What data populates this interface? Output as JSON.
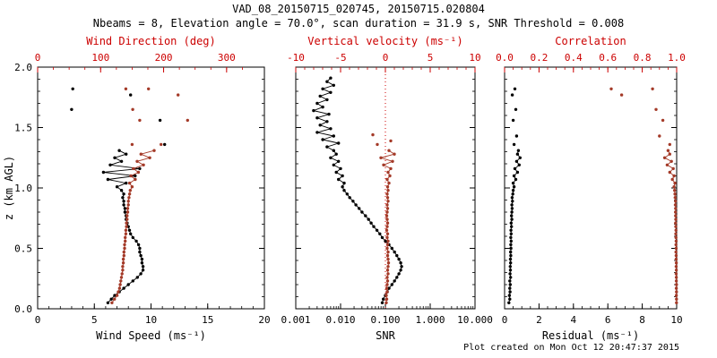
{
  "header": {
    "title": "VAD_08_20150715_020745, 20150715.020804",
    "subtitle": "Nbeams = 8, Elevation angle = 70.0°, scan duration = 31.9 s, SNR Threshold = 0.008"
  },
  "footer": {
    "created": "Plot created on Mon Oct 12 20:47:37 2015"
  },
  "chart_data": {
    "type": "scatter",
    "title": "VAD_08_20150715_020745, 20150715.020804",
    "colors": {
      "axis_red": "#cc0000",
      "marker_red": "#a43a28",
      "black": "#000000"
    },
    "y_axis": {
      "label": "z (km AGL)",
      "range": [
        0,
        2
      ],
      "tick_values": [
        0,
        0.5,
        1,
        1.5,
        2
      ],
      "tick_labels": [
        "0.0",
        "0.5",
        "1.0",
        "1.5",
        "2.0"
      ]
    },
    "z_levels": {
      "main": [
        0.05,
        0.08,
        0.11,
        0.14,
        0.17,
        0.2,
        0.23,
        0.26,
        0.29,
        0.32,
        0.35,
        0.38,
        0.41,
        0.44,
        0.47,
        0.5,
        0.53,
        0.56,
        0.59,
        0.62,
        0.65,
        0.68,
        0.71,
        0.74,
        0.77,
        0.8,
        0.83,
        0.86,
        0.89,
        0.92,
        0.95,
        0.98,
        1.01,
        1.04,
        1.07,
        1.1,
        1.13,
        1.16,
        1.19,
        1.22,
        1.25,
        1.28,
        1.31
      ],
      "snr": [
        0.05,
        0.08,
        0.11,
        0.14,
        0.17,
        0.2,
        0.23,
        0.26,
        0.29,
        0.32,
        0.35,
        0.38,
        0.41,
        0.44,
        0.47,
        0.5,
        0.53,
        0.56,
        0.59,
        0.62,
        0.65,
        0.68,
        0.71,
        0.74,
        0.77,
        0.8,
        0.83,
        0.86,
        0.89,
        0.92,
        0.95,
        0.98,
        1.01,
        1.04,
        1.07,
        1.1,
        1.13,
        1.16,
        1.19,
        1.22,
        1.25,
        1.28,
        1.31,
        1.34,
        1.37,
        1.4,
        1.43,
        1.46,
        1.49,
        1.52,
        1.55,
        1.58,
        1.61,
        1.64,
        1.67,
        1.7,
        1.73,
        1.76,
        1.79,
        1.82,
        1.85,
        1.88,
        1.91
      ]
    },
    "panels": [
      {
        "name": "wind",
        "bottom_axis": {
          "label": "Wind Speed (ms⁻¹)",
          "range": [
            0,
            20
          ],
          "minor_step": 1,
          "tick_values": [
            0,
            5,
            10,
            15,
            20
          ],
          "tick_labels": [
            "0",
            "5",
            "10",
            "15",
            "20"
          ]
        },
        "top_axis": {
          "label": "Wind Direction (deg)",
          "range": [
            0,
            360
          ],
          "minor_step": 25,
          "tick_values": [
            0,
            100,
            200,
            300
          ],
          "tick_labels": [
            "0",
            "100",
            "200",
            "300"
          ]
        },
        "series": [
          {
            "name": "wind-speed",
            "axis": "bottom",
            "color": "black",
            "connect": true,
            "z": "main",
            "v": [
              6.2,
              6.5,
              6.8,
              7.2,
              7.6,
              8.0,
              8.4,
              8.8,
              9.1,
              9.3,
              9.3,
              9.2,
              9.2,
              9.1,
              9.0,
              9.0,
              8.9,
              8.7,
              8.4,
              8.2,
              8.1,
              8.0,
              7.9,
              7.8,
              7.8,
              7.7,
              7.7,
              7.6,
              7.6,
              7.5,
              7.6,
              7.4,
              7.0,
              7.8,
              6.2,
              8.6,
              5.8,
              9.0,
              6.4,
              7.4,
              6.8,
              7.8,
              7.2
            ]
          },
          {
            "name": "wind-direction",
            "axis": "top",
            "color": "red",
            "connect": true,
            "z": "main",
            "v": [
              118,
              122,
              126,
              128,
              130,
              131,
              132,
              133,
              134,
              135,
              135,
              136,
              136,
              137,
              137,
              138,
              138,
              139,
              139,
              140,
              140,
              141,
              141,
              142,
              142,
              143,
              143,
              144,
              144,
              145,
              146,
              147,
              150,
              146,
              155,
              148,
              160,
              152,
              168,
              158,
              178,
              164,
              185
            ]
          },
          {
            "name": "wind-speed-upper",
            "axis": "bottom",
            "color": "black",
            "connect": false,
            "z": [
              1.36,
              1.56,
              1.65,
              1.77,
              1.82
            ],
            "v": [
              11.2,
              10.8,
              3.0,
              8.2,
              3.1
            ]
          },
          {
            "name": "wind-direction-upper",
            "axis": "top",
            "color": "red",
            "connect": false,
            "z": [
              1.36,
              1.36,
              1.56,
              1.56,
              1.65,
              1.77,
              1.82,
              1.82
            ],
            "v": [
              150,
              196,
              162,
              238,
              151,
              223,
              140,
              176
            ]
          }
        ]
      },
      {
        "name": "snr",
        "bottom_axis": {
          "label": "SNR",
          "range": [
            0.001,
            10
          ],
          "log": true,
          "tick_values": [
            0.001,
            0.01,
            0.1,
            1,
            10
          ],
          "tick_labels": [
            "0.001",
            "0.010",
            "0.100",
            "1.000",
            "10.000"
          ]
        },
        "top_axis": {
          "label": "Vertical velocity (ms⁻¹)",
          "range": [
            -10,
            10
          ],
          "minor_step": 1,
          "tick_values": [
            -10,
            -5,
            0,
            5,
            10
          ],
          "tick_labels": [
            "-10",
            "-5",
            "0",
            "5",
            "10"
          ]
        },
        "ref_line_top": 0,
        "series": [
          {
            "name": "snr",
            "axis": "bottom",
            "color": "black",
            "connect": true,
            "z": "snr",
            "v": [
              0.085,
              0.09,
              0.1,
              0.11,
              0.12,
              0.14,
              0.16,
              0.18,
              0.2,
              0.22,
              0.23,
              0.22,
              0.2,
              0.18,
              0.16,
              0.14,
              0.12,
              0.1,
              0.085,
              0.075,
              0.065,
              0.055,
              0.048,
              0.042,
              0.036,
              0.03,
              0.026,
              0.022,
              0.019,
              0.016,
              0.014,
              0.012,
              0.011,
              0.012,
              0.009,
              0.011,
              0.008,
              0.01,
              0.007,
              0.009,
              0.006,
              0.008,
              0.007,
              0.005,
              0.009,
              0.004,
              0.007,
              0.003,
              0.006,
              0.0035,
              0.005,
              0.003,
              0.0055,
              0.0025,
              0.004,
              0.003,
              0.005,
              0.0035,
              0.006,
              0.004,
              0.007,
              0.005,
              0.006
            ]
          },
          {
            "name": "vertical-velocity",
            "axis": "top",
            "color": "red",
            "connect": true,
            "z": "main",
            "v": [
              0.1,
              0.15,
              0.1,
              0.2,
              0.15,
              0.2,
              0.25,
              0.2,
              0.3,
              0.25,
              0.3,
              0.35,
              0.3,
              0.25,
              0.3,
              0.2,
              0.25,
              0.3,
              0.2,
              0.25,
              0.15,
              0.2,
              0.25,
              0.2,
              0.15,
              0.2,
              0.25,
              0.2,
              0.3,
              0.25,
              0.2,
              0.3,
              0.25,
              0.4,
              0.2,
              0.5,
              0.3,
              0.6,
              -0.2,
              0.8,
              -0.5,
              1.0,
              0.4
            ]
          },
          {
            "name": "vertical-velocity-upper",
            "axis": "top",
            "color": "red",
            "connect": false,
            "z": [
              1.36,
              1.39,
              1.44
            ],
            "v": [
              -0.9,
              0.6,
              -1.4
            ]
          }
        ]
      },
      {
        "name": "residual",
        "bottom_axis": {
          "label": "Residual (ms⁻¹)",
          "range": [
            0,
            10
          ],
          "minor_step": 0.5,
          "tick_values": [
            0,
            2,
            4,
            6,
            8,
            10
          ],
          "tick_labels": [
            "0",
            "2",
            "4",
            "6",
            "8",
            "10"
          ]
        },
        "top_axis": {
          "label": "Correlation",
          "range": [
            0,
            1
          ],
          "minor_step": 0.05,
          "tick_values": [
            0,
            0.2,
            0.4,
            0.6,
            0.8,
            1.0
          ],
          "tick_labels": [
            "0.0",
            "0.2",
            "0.4",
            "0.6",
            "0.8",
            "1.0"
          ]
        },
        "series": [
          {
            "name": "residual",
            "axis": "bottom",
            "color": "black",
            "connect": true,
            "z": "main",
            "v": [
              0.25,
              0.3,
              0.28,
              0.32,
              0.3,
              0.33,
              0.3,
              0.35,
              0.32,
              0.34,
              0.33,
              0.35,
              0.34,
              0.36,
              0.35,
              0.37,
              0.36,
              0.38,
              0.36,
              0.38,
              0.37,
              0.4,
              0.38,
              0.42,
              0.4,
              0.42,
              0.44,
              0.42,
              0.46,
              0.44,
              0.48,
              0.5,
              0.55,
              0.5,
              0.65,
              0.55,
              0.75,
              0.6,
              0.85,
              0.7,
              0.9,
              0.75,
              0.8
            ]
          },
          {
            "name": "correlation",
            "axis": "top",
            "color": "red",
            "connect": true,
            "z": "main",
            "v": [
              0.999,
              0.999,
              0.998,
              0.999,
              0.998,
              0.999,
              0.998,
              0.998,
              0.997,
              0.998,
              0.997,
              0.998,
              0.997,
              0.997,
              0.996,
              0.997,
              0.996,
              0.997,
              0.996,
              0.995,
              0.996,
              0.995,
              0.994,
              0.995,
              0.994,
              0.993,
              0.994,
              0.992,
              0.993,
              0.991,
              0.99,
              0.988,
              0.985,
              0.99,
              0.975,
              0.985,
              0.96,
              0.98,
              0.945,
              0.97,
              0.93,
              0.96,
              0.95
            ]
          },
          {
            "name": "residual-upper",
            "axis": "bottom",
            "color": "black",
            "connect": false,
            "z": [
              1.36,
              1.43,
              1.56,
              1.65,
              1.77,
              1.82
            ],
            "v": [
              0.55,
              0.7,
              0.5,
              0.65,
              0.45,
              0.6
            ]
          },
          {
            "name": "correlation-upper",
            "axis": "top",
            "color": "red",
            "connect": false,
            "z": [
              1.36,
              1.43,
              1.56,
              1.65,
              1.77,
              1.82,
              1.82
            ],
            "v": [
              0.96,
              0.9,
              0.92,
              0.88,
              0.68,
              0.86,
              0.62
            ]
          }
        ]
      }
    ]
  }
}
